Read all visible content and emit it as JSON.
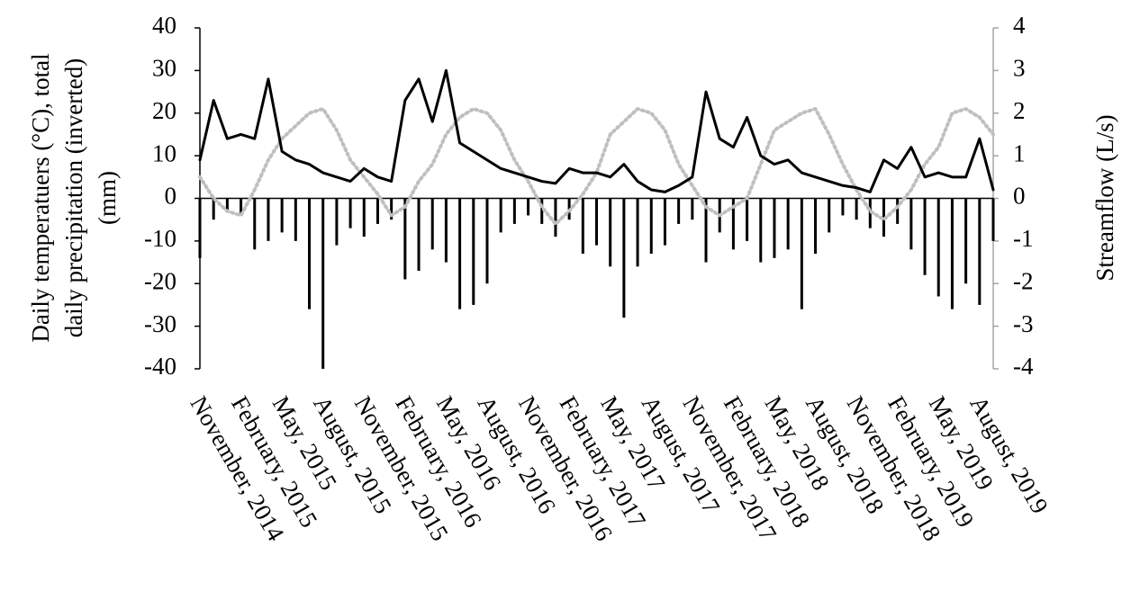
{
  "chart_data": {
    "type": "combo",
    "y_label": [
      "Daily temperatuers (°C), total",
      "daily precipitation (inverted)",
      "(mm)"
    ],
    "y2_label": "Streamflow (L/s)",
    "categories": [
      "November, 2014",
      null,
      null,
      "February, 2015",
      null,
      null,
      "May, 2015",
      null,
      null,
      "August, 2015",
      null,
      null,
      "November, 2015",
      null,
      null,
      "February, 2016",
      null,
      null,
      "May, 2016",
      null,
      null,
      "August, 2016",
      null,
      null,
      "November, 2016",
      null,
      null,
      "February, 2017",
      null,
      null,
      "May, 2017",
      null,
      null,
      "August, 2017",
      null,
      null,
      "November, 2017",
      null,
      null,
      "February, 2018",
      null,
      null,
      "May, 2018",
      null,
      null,
      "August, 2018",
      null,
      null,
      "November, 2018",
      null,
      null,
      "February, 2019",
      null,
      null,
      "May, 2019",
      null,
      null,
      "August, 2019",
      null
    ],
    "ylim": [
      -40,
      40
    ],
    "yticks": [
      -40,
      -30,
      -20,
      -10,
      0,
      10,
      20,
      30,
      40
    ],
    "y2lim": [
      -4,
      4
    ],
    "y2ticks": [
      -4,
      -3,
      -2,
      -1,
      0,
      1,
      2,
      3,
      4
    ],
    "grid": false,
    "series": [
      {
        "type": "bar",
        "color": "#000000",
        "values": [
          -14,
          -5,
          -3,
          -4,
          -12,
          -10,
          -8,
          -10,
          -26,
          -40,
          -11,
          -7,
          -9,
          -6,
          -5,
          -19,
          -17,
          -12,
          -15,
          -26,
          -25,
          -20,
          -8,
          -6,
          -4,
          -6,
          -9,
          -5,
          -13,
          -11,
          -16,
          -28,
          -16,
          -13,
          -11,
          -6,
          -5,
          -15,
          -8,
          -12,
          -10,
          -15,
          -14,
          -12,
          -26,
          -13,
          -8,
          -4,
          -5,
          -7,
          -9,
          -6,
          -12,
          -18,
          -23,
          -26,
          -20,
          -25,
          -10
        ]
      },
      {
        "type": "line",
        "color": "#bfbfbf",
        "dashed": true,
        "values": [
          5,
          0,
          -3,
          -4,
          2,
          9,
          14,
          17,
          20,
          21,
          16,
          9,
          5,
          1,
          -4,
          -2,
          4,
          8,
          15,
          19,
          21,
          20,
          16,
          9,
          4,
          -2,
          -6,
          -3,
          1,
          6,
          15,
          18,
          21,
          20,
          16,
          8,
          3,
          -2,
          -4,
          -2,
          0,
          8,
          16,
          18,
          20,
          21,
          15,
          8,
          2,
          -3,
          -5,
          -2,
          2,
          8,
          12,
          20,
          21,
          19,
          15
        ]
      },
      {
        "type": "line",
        "color": "#000000",
        "axis": "y2",
        "values": [
          0.9,
          2.3,
          1.4,
          1.5,
          1.4,
          2.8,
          1.1,
          0.9,
          0.8,
          0.6,
          0.5,
          0.4,
          0.7,
          0.5,
          0.4,
          2.3,
          2.8,
          1.8,
          3.0,
          1.3,
          1.1,
          0.9,
          0.7,
          0.6,
          0.5,
          0.4,
          0.35,
          0.7,
          0.6,
          0.6,
          0.5,
          0.8,
          0.4,
          0.2,
          0.15,
          0.3,
          0.5,
          2.5,
          1.4,
          1.2,
          1.9,
          1.0,
          0.8,
          0.9,
          0.6,
          0.5,
          0.4,
          0.3,
          0.25,
          0.15,
          0.9,
          0.7,
          1.2,
          0.5,
          0.6,
          0.5,
          0.5,
          1.4,
          0.2
        ]
      }
    ]
  }
}
